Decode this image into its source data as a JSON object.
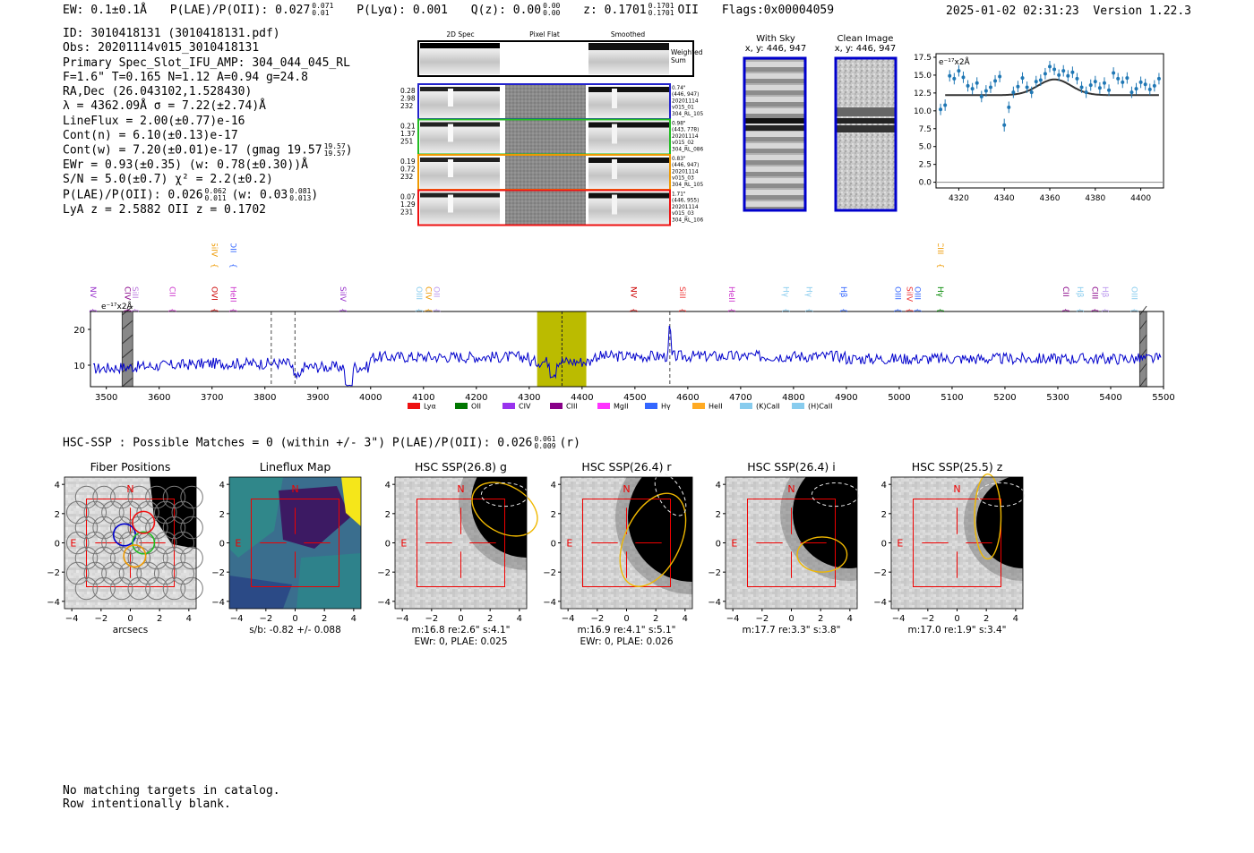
{
  "header": {
    "ew": "EW: 0.1±0.1Å",
    "plae": "P(LAE)/P(OII): 0.027",
    "plae_sup": "0.071",
    "plae_sub": "0.01",
    "plya": "P(Lyα): 0.001",
    "qz": "Q(z): 0.00",
    "qz_sup": "0.00",
    "qz_sub": "0.00",
    "z": "z: 0.1701",
    "z_sup": "0.1701",
    "z_sub": "0.1701",
    "z_line": "OII",
    "flags": "Flags:0x00004059",
    "datetime": "2025-01-02 02:31:23",
    "version": "Version 1.22.3"
  },
  "details": [
    "ID: 3010418131 (3010418131.pdf)",
    "Obs: 20201114v015_3010418131",
    "Primary Spec_Slot_IFU_AMP: 304_044_045_RL",
    "F=1.6\"  T=0.165  N=1.12  A=0.94  g=24.8",
    "RA,Dec (26.043102,1.528430)",
    "λ = 4362.09Å  σ = 7.22(±2.74)Å",
    "LineFlux = 2.00(±0.77)e-16",
    "Cont(n) = 6.10(±0.13)e-17",
    "Cont(w) = 7.20(±0.01)e-17 (gmag 19.57",
    "EWr = 0.93(±0.35) (w: 0.78(±0.30))Å",
    "S/N = 5.0(±0.7)  χ² = 2.2(±0.2)",
    "P(LAE)/P(OII): 0.026",
    "LyA z = 2.5882  OII z = 0.1702"
  ],
  "details_extra": {
    "gmag_sup": "19.57",
    "gmag_sub": "19.57",
    "plae_sup": "0.062",
    "plae_sub": "0.011",
    "plae_w": "(w: 0.03",
    "plae_w_sup": "0.081",
    "plae_w_sub": "0.013"
  },
  "cutouts": {
    "col_labels": [
      "2D Spec",
      "Pixel Flat",
      "Smoothed"
    ],
    "weighted_label": [
      "Weighted",
      "Sum"
    ],
    "rows": [
      {
        "left": [
          "0.28",
          "2.98",
          "232"
        ],
        "right": [
          "0.74\"",
          "(446, 947)",
          "20201114",
          "v015_01",
          "304_RL_105"
        ],
        "color": "#2222cc"
      },
      {
        "left": [
          "0.21",
          "1.37",
          "251"
        ],
        "right": [
          "0.98\"",
          "(443, 778)",
          "20201114",
          "v015_02",
          "304_RL_086"
        ],
        "color": "#22bb22"
      },
      {
        "left": [
          "0.19",
          "0.72",
          "232"
        ],
        "right": [
          "0.83\"",
          "(446, 947)",
          "20201114",
          "v015_03",
          "304_RL_105"
        ],
        "color": "#ee9900"
      },
      {
        "left": [
          "0.07",
          "1.29",
          "231"
        ],
        "right": [
          "1.71\"",
          "(446, 955)",
          "20201114",
          "v015_03",
          "304_RL_106"
        ],
        "color": "#ee1111"
      }
    ]
  },
  "sky_panels": {
    "with_sky": [
      "With Sky",
      "x, y: 446, 947"
    ],
    "clean": [
      "Clean Image",
      "x, y: 446, 947"
    ]
  },
  "zoom_chart": {
    "type": "scatter",
    "unit_label": "e⁻¹⁷x2Å",
    "xlim": [
      4310,
      4410
    ],
    "ylim": [
      -0.8,
      18
    ],
    "xticks": [
      4320,
      4340,
      4360,
      4380,
      4400
    ],
    "yticks": [
      "0.0",
      "2.5",
      "5.0",
      "7.5",
      "10.0",
      "12.5",
      "15.0",
      "17.5"
    ],
    "ytick_values": [
      0,
      2.5,
      5,
      7.5,
      10,
      12.5,
      15,
      17.5
    ],
    "x": [
      4312,
      4314,
      4316,
      4318,
      4320,
      4322,
      4324,
      4326,
      4328,
      4330,
      4332,
      4334,
      4336,
      4338,
      4340,
      4342,
      4344,
      4346,
      4348,
      4350,
      4352,
      4354,
      4356,
      4358,
      4360,
      4362,
      4364,
      4366,
      4368,
      4370,
      4372,
      4374,
      4376,
      4378,
      4380,
      4382,
      4384,
      4386,
      4388,
      4390,
      4392,
      4394,
      4396,
      4398,
      4400,
      4402,
      4404,
      4406,
      4408
    ],
    "y": [
      10.2,
      10.8,
      14.9,
      14.5,
      15.6,
      14.7,
      13.5,
      13.1,
      13.9,
      12.0,
      12.8,
      13.3,
      14.2,
      14.8,
      8.0,
      10.5,
      12.6,
      13.4,
      14.6,
      13.3,
      12.6,
      14.1,
      14.3,
      15.2,
      16.2,
      15.8,
      15.0,
      15.6,
      14.9,
      15.4,
      14.5,
      13.3,
      12.6,
      13.6,
      14.1,
      13.2,
      13.9,
      12.9,
      15.3,
      14.5,
      14.0,
      14.6,
      12.6,
      13.1,
      14.0,
      13.7,
      13.0,
      13.5,
      14.5
    ],
    "err": [
      0.8,
      0.8,
      0.8,
      0.8,
      0.8,
      0.8,
      0.8,
      0.8,
      0.8,
      0.8,
      0.8,
      0.8,
      0.8,
      0.8,
      0.9,
      0.8,
      0.8,
      0.8,
      0.8,
      0.8,
      0.8,
      0.8,
      0.8,
      0.8,
      0.8,
      0.8,
      0.8,
      0.8,
      0.8,
      0.8,
      0.8,
      0.8,
      0.8,
      0.8,
      0.8,
      0.8,
      0.8,
      0.8,
      0.8,
      0.8,
      0.8,
      0.8,
      0.8,
      0.8,
      0.8,
      0.8,
      0.8,
      0.8,
      0.8
    ],
    "fit": {
      "continuum": 12.2,
      "amplitude": 2.2,
      "center": 4362.09,
      "sigma": 7.22,
      "x_range": [
        4314,
        4408
      ]
    },
    "point_color": "#1f77b4",
    "fit_color": "#333333"
  },
  "chart_data": {
    "type": "line",
    "unit_label": "e⁻¹⁷x2Å",
    "xlim": [
      3470,
      5500
    ],
    "ylim": [
      4,
      25
    ],
    "xticks": [
      3500,
      3600,
      3700,
      3800,
      3900,
      4000,
      4100,
      4200,
      4300,
      4400,
      4500,
      4600,
      4700,
      4800,
      4900,
      5000,
      5100,
      5200,
      5300,
      5400,
      5500
    ],
    "yticks": [
      10,
      20
    ],
    "line_color": "#0000cc",
    "highlight_band": {
      "x": [
        4315,
        4408
      ],
      "color": "#bbbb00"
    },
    "center_line": 4362,
    "dashed_lines": [
      3812,
      3857,
      4566
    ],
    "masked_regions": [
      [
        3530,
        3550
      ],
      [
        5455,
        5468
      ]
    ],
    "emission_line_x": 4566,
    "line_markers": [
      {
        "label": "NV",
        "x": 3475,
        "color": "#9933cc",
        "row": 0
      },
      {
        "label": "CIV",
        "x": 3540,
        "color": "#880088",
        "row": 0
      },
      {
        "label": "SiII",
        "x": 3555,
        "color": "#bb77dd",
        "row": 0
      },
      {
        "label": "CII",
        "x": 3625,
        "color": "#cc33cc",
        "row": 0
      },
      {
        "label": "OVI",
        "x": 3705,
        "color": "#cc0000",
        "row": 0
      },
      {
        "label": "SiIV",
        "x": 3705,
        "color": "#ee9900",
        "row": 1
      },
      {
        "label": "HeII",
        "x": 3740,
        "color": "#cc33cc",
        "row": 0
      },
      {
        "label": "OII",
        "x": 3740,
        "color": "#3366ff",
        "row": 1
      },
      {
        "label": "SiIV",
        "x": 3948,
        "color": "#9933cc",
        "row": 0
      },
      {
        "label": "OIII",
        "x": 4092,
        "color": "#88ccee",
        "row": 0
      },
      {
        "label": "CIV",
        "x": 4110,
        "color": "#ee9900",
        "row": 0
      },
      {
        "label": "OII",
        "x": 4125,
        "color": "#bb99ee",
        "row": 0
      },
      {
        "label": "NV",
        "x": 4498,
        "color": "#cc0000",
        "row": 0
      },
      {
        "label": "SiII",
        "x": 4590,
        "color": "#ee3333",
        "row": 0
      },
      {
        "label": "HeII",
        "x": 4683,
        "color": "#cc33cc",
        "row": 0
      },
      {
        "label": "Hγ",
        "x": 4786,
        "color": "#88ccee",
        "row": 0
      },
      {
        "label": "Hγ",
        "x": 4830,
        "color": "#88ccee",
        "row": 0
      },
      {
        "label": "Hβ",
        "x": 4895,
        "color": "#3366ff",
        "row": 0
      },
      {
        "label": "OIII",
        "x": 4998,
        "color": "#3366ff",
        "row": 0
      },
      {
        "label": "SiIV",
        "x": 5020,
        "color": "#ee3333",
        "row": 0
      },
      {
        "label": "OIII",
        "x": 5035,
        "color": "#3366ff",
        "row": 0
      },
      {
        "label": "Hγ",
        "x": 5078,
        "color": "#008800",
        "row": 0
      },
      {
        "label": "CIII",
        "x": 5078,
        "color": "#ee9900",
        "row": 1
      },
      {
        "label": "CII",
        "x": 5315,
        "color": "#880088",
        "row": 0
      },
      {
        "label": "Hβ",
        "x": 5342,
        "color": "#88ccee",
        "row": 0
      },
      {
        "label": "CIII",
        "x": 5370,
        "color": "#880088",
        "row": 0
      },
      {
        "label": "Hβ",
        "x": 5390,
        "color": "#bb99ee",
        "row": 0
      },
      {
        "label": "OIII",
        "x": 5445,
        "color": "#88ccee",
        "row": 0
      }
    ],
    "legend": [
      {
        "label": "Lyα",
        "color": "#ee1111"
      },
      {
        "label": "OII",
        "color": "#007700"
      },
      {
        "label": "CIV",
        "color": "#9933ee"
      },
      {
        "label": "CIII",
        "color": "#880088"
      },
      {
        "label": "MgII",
        "color": "#ff33ff"
      },
      {
        "label": "Hγ",
        "color": "#3366ff"
      },
      {
        "label": "HeII",
        "color": "#ffaa22"
      },
      {
        "label": "(K)CaII",
        "color": "#88ccee"
      },
      {
        "label": "(H)CaII",
        "color": "#88ccee"
      }
    ]
  },
  "hsc": {
    "title": "HSC-SSP : Possible Matches = 0 (within +/- 3\")  P(LAE)/P(OII): 0.026",
    "title_sup": "0.061",
    "title_sub": "0.009",
    "title_suffix": "(r)",
    "panels": [
      {
        "title": "Fiber Positions",
        "caption": [
          "arcsecs"
        ]
      },
      {
        "title": "Lineflux Map",
        "caption": [
          "s/b: -0.82 +/- 0.088"
        ]
      },
      {
        "title": "HSC SSP(26.8) g",
        "caption": [
          "m:16.8  re:2.6\"  s:4.1\"",
          "EWr: 0, PLAE: 0.025"
        ]
      },
      {
        "title": "HSC SSP(26.4) r",
        "caption": [
          "m:16.9  re:4.1\"  s:5.1\"",
          "EWr: 0, PLAE: 0.026"
        ]
      },
      {
        "title": "HSC SSP(26.4) i",
        "caption": [
          "m:17.7  re:3.3\"  s:3.8\""
        ]
      },
      {
        "title": "HSC SSP(25.5) z",
        "caption": [
          "m:17.0  re:1.9\"  s:3.4\""
        ]
      }
    ],
    "axis_ticks": [
      "−4",
      "−2",
      "0",
      "2",
      "4"
    ],
    "axis_tick_values": [
      -4,
      -2,
      0,
      2,
      4
    ],
    "north": "N",
    "east": "E"
  },
  "footer": [
    "No matching targets in catalog.",
    "Row intentionally blank."
  ]
}
